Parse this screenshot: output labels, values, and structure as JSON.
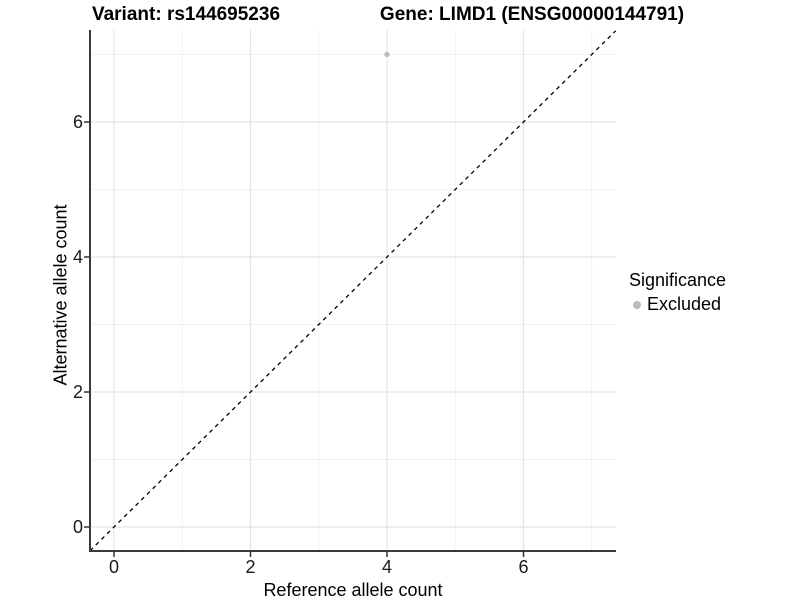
{
  "titles": {
    "variant": "Variant: rs144695236",
    "gene": "Gene: LIMD1 (ENSG00000144791)"
  },
  "chart_data": {
    "type": "scatter",
    "title": "Variant: rs144695236   Gene: LIMD1 (ENSG00000144791)",
    "xlabel": "Reference allele count",
    "ylabel": "Alternative allele count",
    "xlim": [
      -0.35,
      7.35
    ],
    "ylim": [
      -0.35,
      7.35
    ],
    "x_major_ticks": [
      0,
      2,
      4,
      6
    ],
    "y_major_ticks": [
      0,
      2,
      4,
      6
    ],
    "x_minor_ticks": [
      1,
      3,
      5,
      7
    ],
    "y_minor_ticks": [
      1,
      3,
      5,
      7
    ],
    "grid": true,
    "series": [
      {
        "name": "Excluded",
        "color": "#bdbdbd",
        "points": [
          {
            "x": 4,
            "y": 7
          }
        ]
      }
    ],
    "reference_line": {
      "type": "identity y = x",
      "style": "dashed",
      "color": "#000000"
    },
    "legend": {
      "position": "right",
      "title": "Significance",
      "entries": [
        {
          "label": "Excluded",
          "color": "#bdbdbd"
        }
      ]
    }
  },
  "colors": {
    "background": "#ffffff",
    "grid_major": "#e4e4e4",
    "grid_minor": "#f1f1f1",
    "axis_line": "#3a3a3a",
    "tick_mark": "#333333",
    "point": "#bdbdbd",
    "reference_line": "#000000",
    "text": "#000000"
  }
}
